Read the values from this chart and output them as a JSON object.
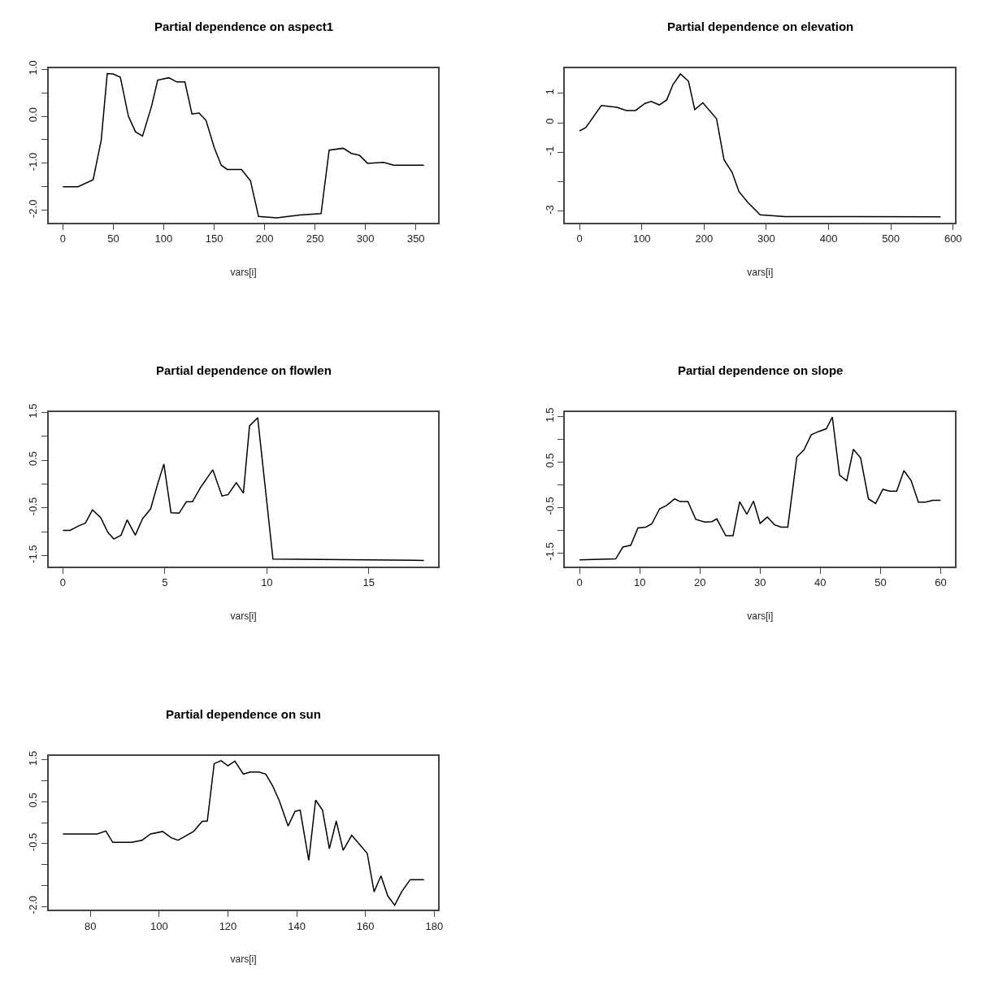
{
  "chart_data": [
    {
      "type": "line",
      "title": "Partial dependence on aspect1",
      "xlabel": "vars[i]",
      "color": "#000000",
      "x": [
        0,
        15,
        30,
        38,
        44,
        50,
        57,
        65,
        72,
        79,
        88,
        94,
        105,
        113,
        121,
        128,
        135,
        142,
        150,
        157,
        163,
        177,
        186,
        194,
        212,
        235,
        256,
        264,
        278,
        286,
        294,
        302,
        318,
        328,
        358
      ],
      "values": [
        -1.5,
        -1.5,
        -1.35,
        -0.51,
        0.91,
        0.9,
        0.83,
        0.0,
        -0.33,
        -0.42,
        0.22,
        0.77,
        0.82,
        0.73,
        0.73,
        0.05,
        0.07,
        -0.09,
        -0.66,
        -1.04,
        -1.13,
        -1.13,
        -1.37,
        -2.13,
        -2.16,
        -2.1,
        -2.07,
        -0.72,
        -0.68,
        -0.79,
        -0.83,
        -1.0,
        -0.98,
        -1.04,
        -1.04
      ],
      "xlim": [
        -14.3,
        372.3
      ],
      "ylim": [
        -2.26,
        1.02
      ],
      "xticks": [
        0,
        50,
        100,
        150,
        200,
        250,
        300,
        350
      ],
      "yticks": [
        {
          "value": -2.0,
          "label": "-2.0"
        },
        {
          "value": -1.5,
          "label": null
        },
        {
          "value": -1.0,
          "label": "-1.0"
        },
        {
          "value": -0.5,
          "label": null
        },
        {
          "value": 0.0,
          "label": "0.0"
        },
        {
          "value": 0.5,
          "label": null
        },
        {
          "value": 1.0,
          "label": "1.0"
        }
      ]
    },
    {
      "type": "line",
      "title": "Partial dependence on elevation",
      "xlabel": "vars[i]",
      "color": "#000000",
      "x": [
        0,
        10,
        35,
        60,
        75,
        90,
        105,
        115,
        128,
        140,
        150,
        162,
        175,
        185,
        198,
        220,
        232,
        245,
        256,
        270,
        290,
        330,
        450,
        580
      ],
      "values": [
        -0.27,
        -0.16,
        0.59,
        0.53,
        0.42,
        0.42,
        0.66,
        0.73,
        0.61,
        0.78,
        1.3,
        1.66,
        1.41,
        0.45,
        0.68,
        0.14,
        -1.25,
        -1.68,
        -2.33,
        -2.69,
        -3.12,
        -3.18,
        -3.18,
        -3.19
      ],
      "xlim": [
        -23.2,
        603.2
      ],
      "ylim": [
        -3.38,
        1.85
      ],
      "xticks": [
        0,
        100,
        200,
        300,
        400,
        500,
        600
      ],
      "yticks": [
        -3,
        {
          "value": -2,
          "label": null
        },
        -1,
        0,
        1
      ]
    },
    {
      "type": "line",
      "title": "Partial dependence on flowlen",
      "xlabel": "vars[i]",
      "color": "#000000",
      "x": [
        0,
        0.35,
        0.8,
        1.1,
        1.45,
        1.85,
        2.2,
        2.5,
        2.85,
        3.15,
        3.55,
        3.9,
        4.3,
        4.65,
        4.95,
        5.3,
        5.7,
        6.05,
        6.35,
        6.75,
        7.35,
        7.8,
        8.1,
        8.5,
        8.85,
        9.15,
        9.55,
        10.3,
        17.7
      ],
      "values": [
        -0.97,
        -0.97,
        -0.87,
        -0.82,
        -0.54,
        -0.7,
        -1.01,
        -1.15,
        -1.07,
        -0.75,
        -1.07,
        -0.73,
        -0.52,
        0.01,
        0.42,
        -0.6,
        -0.61,
        -0.37,
        -0.37,
        -0.07,
        0.3,
        -0.25,
        -0.22,
        0.03,
        -0.19,
        1.22,
        1.39,
        -1.57,
        -1.6
      ],
      "xlim": [
        -0.71,
        18.41
      ],
      "ylim": [
        -1.72,
        1.51
      ],
      "xticks": [
        0,
        5,
        10,
        15
      ],
      "yticks": [
        {
          "value": -1.5,
          "label": "-1.5"
        },
        {
          "value": -1.0,
          "label": null
        },
        {
          "value": -0.5,
          "label": "-0.5"
        },
        {
          "value": 0.0,
          "label": null
        },
        {
          "value": 0.5,
          "label": "0.5"
        },
        {
          "value": 1.0,
          "label": null
        },
        {
          "value": 1.5,
          "label": "1.5"
        }
      ]
    },
    {
      "type": "line",
      "title": "Partial dependence on slope",
      "xlabel": "vars[i]",
      "color": "#000000",
      "x": [
        0,
        6,
        7.2,
        8.5,
        9.7,
        11,
        12,
        13.3,
        14.5,
        15.8,
        16.7,
        18,
        19.3,
        20.8,
        22,
        22.8,
        24.3,
        25.5,
        26.6,
        27.8,
        28.9,
        30,
        31.2,
        32.4,
        33.5,
        34.6,
        36.1,
        37.3,
        38.5,
        39.7,
        41,
        42,
        43.2,
        44.4,
        45.5,
        46.7,
        48,
        49.2,
        50.4,
        51.5,
        52.7,
        53.9,
        55.1,
        56.3,
        57.5,
        58.7,
        60
      ],
      "values": [
        -1.65,
        -1.63,
        -1.37,
        -1.33,
        -0.95,
        -0.93,
        -0.86,
        -0.53,
        -0.45,
        -0.31,
        -0.37,
        -0.37,
        -0.76,
        -0.82,
        -0.81,
        -0.75,
        -1.12,
        -1.12,
        -0.37,
        -0.65,
        -0.36,
        -0.85,
        -0.71,
        -0.88,
        -0.93,
        -0.93,
        0.61,
        0.77,
        1.1,
        1.17,
        1.23,
        1.49,
        0.21,
        0.09,
        0.78,
        0.59,
        -0.31,
        -0.41,
        -0.1,
        -0.14,
        -0.14,
        0.31,
        0.09,
        -0.38,
        -0.38,
        -0.34,
        -0.34
      ],
      "xlim": [
        -2.4,
        62.4
      ],
      "ylim": [
        -1.79,
        1.6
      ],
      "xticks": [
        0,
        10,
        20,
        30,
        40,
        50,
        60
      ],
      "yticks": [
        {
          "value": -1.5,
          "label": "-1.5"
        },
        {
          "value": -1.0,
          "label": null
        },
        {
          "value": -0.5,
          "label": "-0.5"
        },
        {
          "value": 0.0,
          "label": null
        },
        {
          "value": 0.5,
          "label": "0.5"
        },
        {
          "value": 1.0,
          "label": null
        },
        {
          "value": 1.5,
          "label": "1.5"
        }
      ]
    },
    {
      "type": "line",
      "title": "Partial dependence on sun",
      "xlabel": "vars[i]",
      "color": "#000000",
      "x": [
        72,
        82,
        84.5,
        86.5,
        92,
        95,
        97.5,
        101,
        103.5,
        105.5,
        110,
        112.5,
        114,
        116,
        118,
        120,
        122,
        124.5,
        126.5,
        129,
        131,
        133,
        135,
        137.5,
        139.5,
        141,
        143.5,
        145.5,
        147.5,
        149.5,
        151.5,
        153.5,
        156,
        160.5,
        162.5,
        164.5,
        166.5,
        168.5,
        170.5,
        173,
        177
      ],
      "values": [
        -0.27,
        -0.27,
        -0.2,
        -0.47,
        -0.47,
        -0.42,
        -0.27,
        -0.21,
        -0.36,
        -0.42,
        -0.21,
        0.03,
        0.04,
        1.41,
        1.48,
        1.36,
        1.47,
        1.16,
        1.21,
        1.21,
        1.16,
        0.88,
        0.51,
        -0.08,
        0.27,
        0.3,
        -0.9,
        0.54,
        0.3,
        -0.62,
        0.04,
        -0.66,
        -0.3,
        -0.73,
        -1.65,
        -1.27,
        -1.75,
        -1.97,
        -1.65,
        -1.36,
        -1.36
      ],
      "xlim": [
        67.8,
        181.2
      ],
      "ylim": [
        -2.08,
        1.6
      ],
      "xticks": [
        80,
        100,
        120,
        140,
        160,
        180
      ],
      "yticks": [
        {
          "value": -2.0,
          "label": "-2.0"
        },
        {
          "value": -1.5,
          "label": null
        },
        {
          "value": -1.0,
          "label": null
        },
        {
          "value": -0.5,
          "label": "-0.5"
        },
        {
          "value": 0.0,
          "label": null
        },
        {
          "value": 0.5,
          "label": "0.5"
        },
        {
          "value": 1.0,
          "label": null
        },
        {
          "value": 1.5,
          "label": "1.5"
        }
      ]
    }
  ]
}
